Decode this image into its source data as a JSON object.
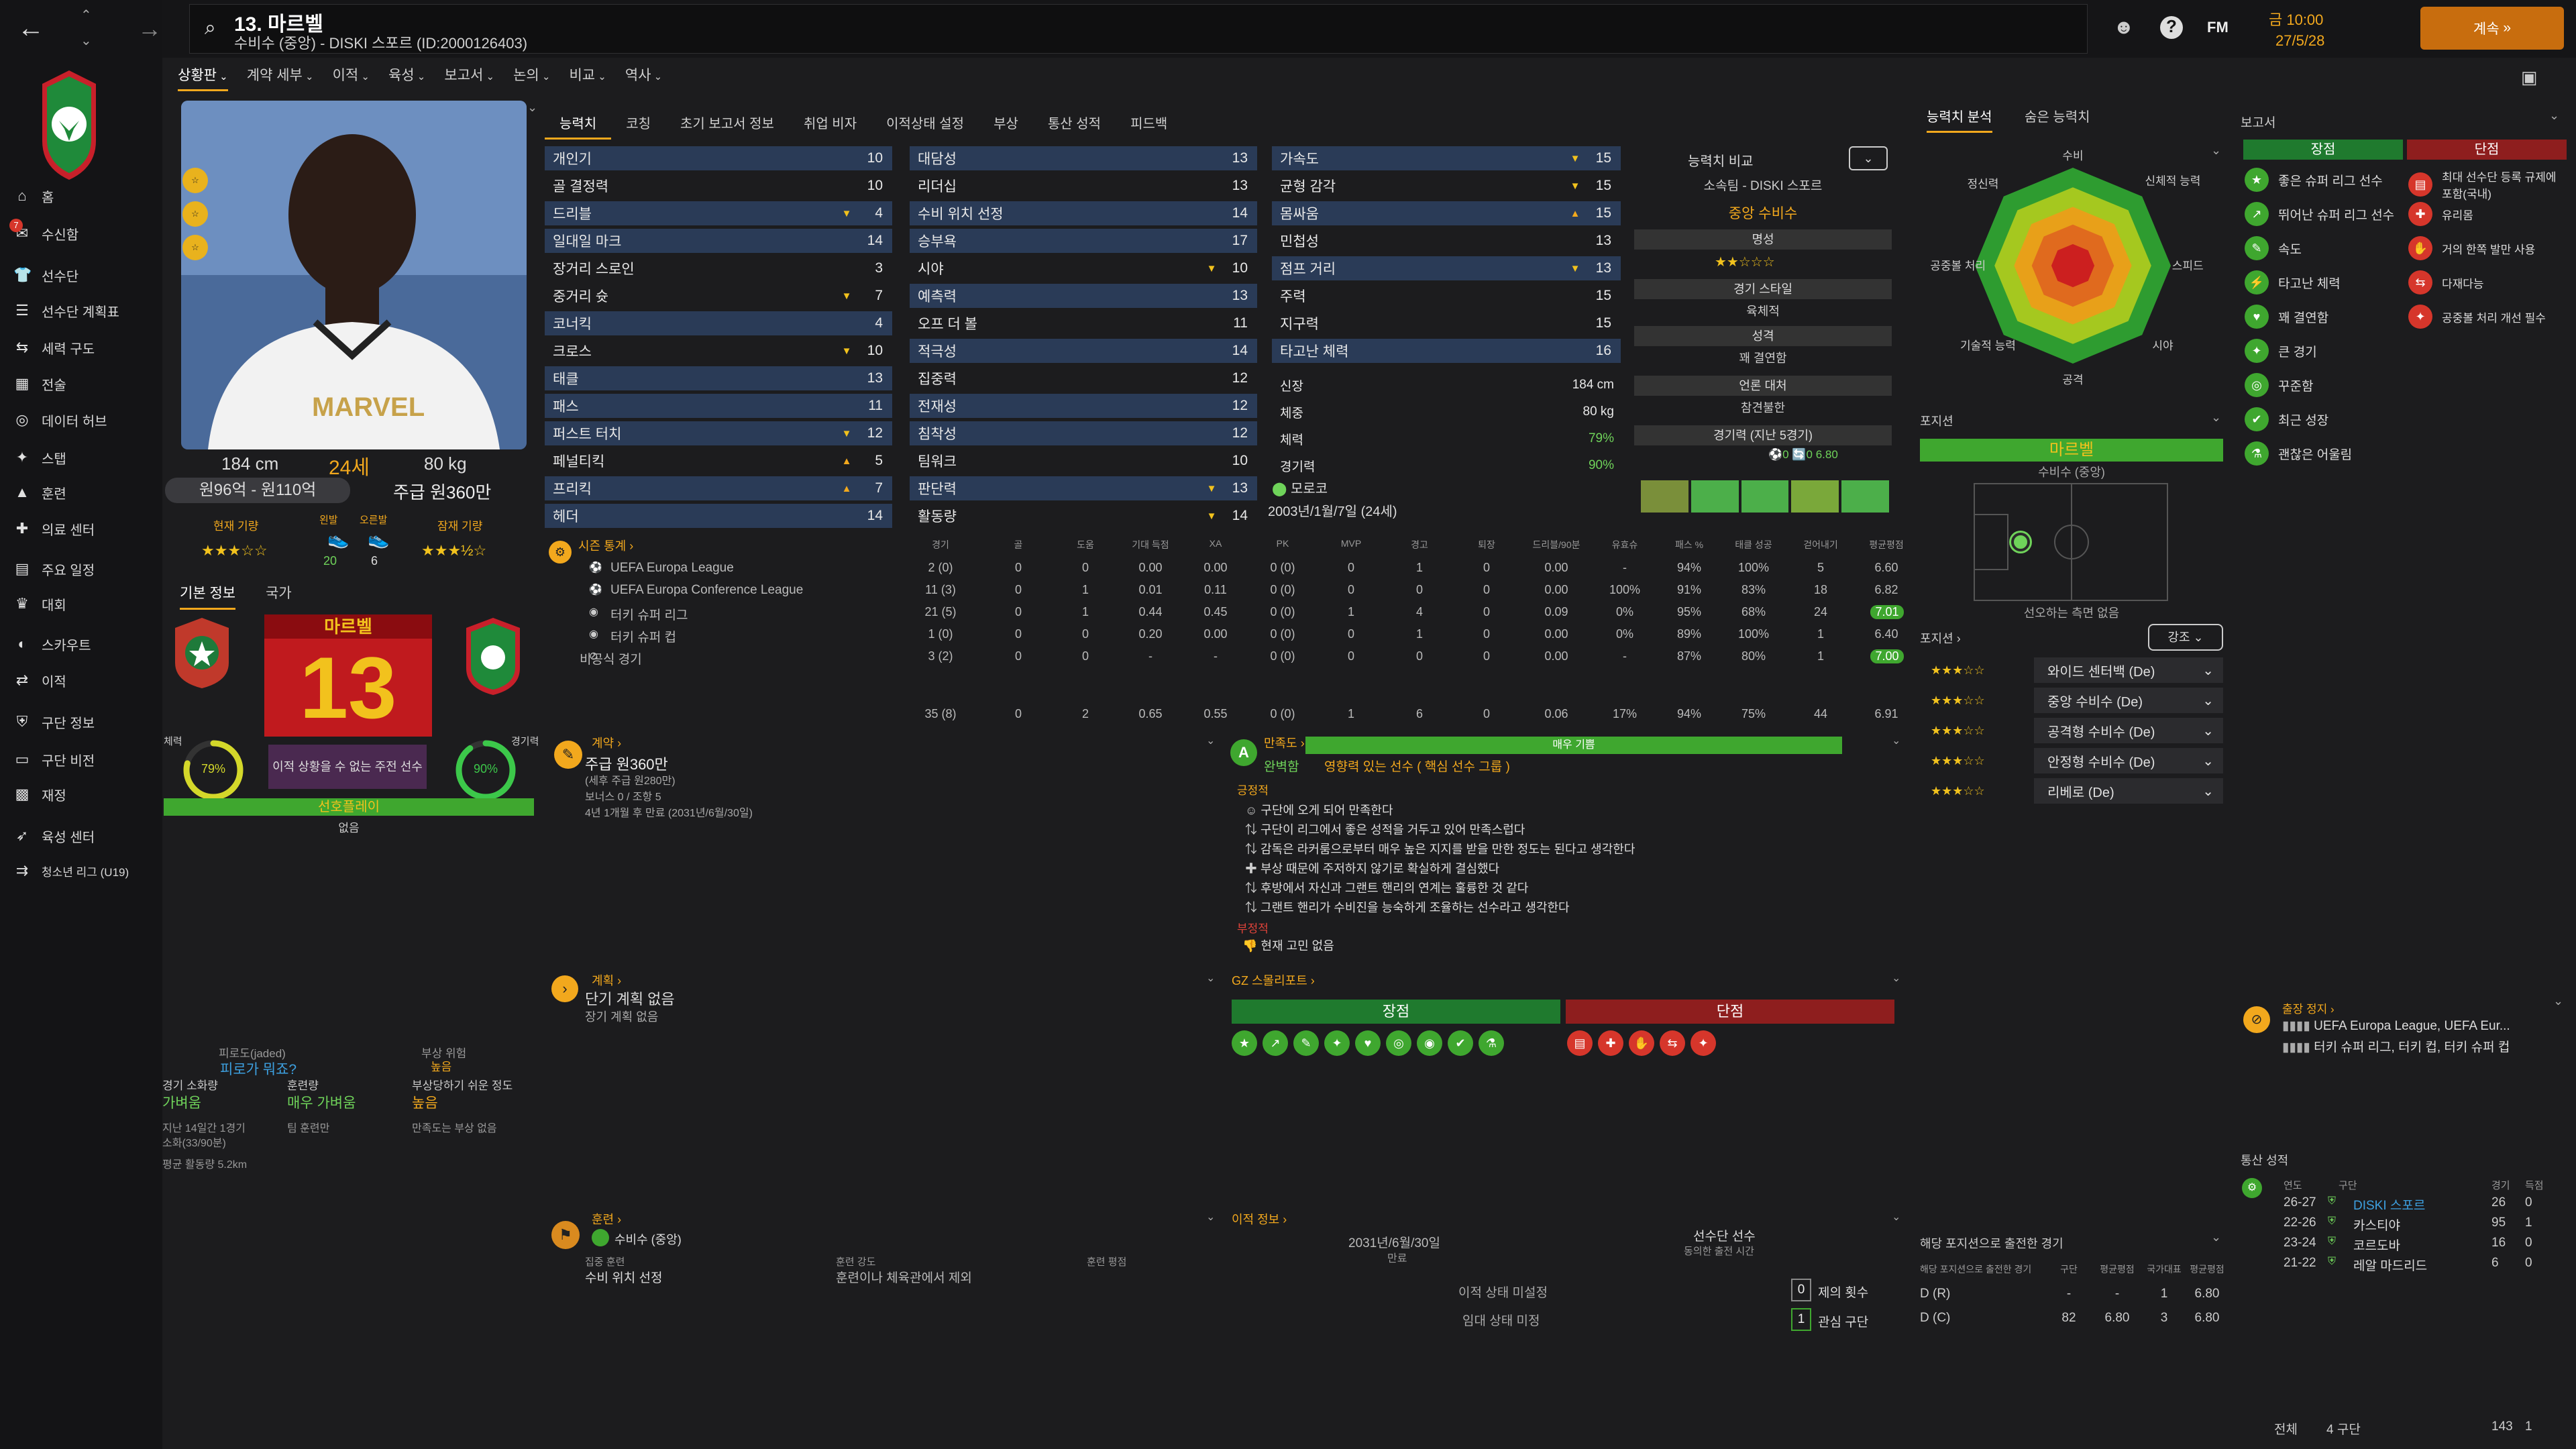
{
  "header": {
    "player_title": "13. 마르벨",
    "player_subtitle": "수비수 (중앙) - DISKI 스포르 (ID:2000126403)",
    "date_time": "금 10:00",
    "date": "27/5/28",
    "continue_label": "계속"
  },
  "sidebar": {
    "items": [
      {
        "label": "홈",
        "icon": "home-icon"
      },
      {
        "label": "수신함",
        "icon": "inbox-icon"
      },
      {
        "label": "선수단",
        "icon": "squad-icon"
      },
      {
        "label": "선수단 계획표",
        "icon": "plan-icon"
      },
      {
        "label": "세력 구도",
        "icon": "dynamics-icon"
      },
      {
        "label": "전술",
        "icon": "tactics-icon"
      },
      {
        "label": "데이터 허브",
        "icon": "data-icon"
      },
      {
        "label": "스탭",
        "icon": "staff-icon"
      },
      {
        "label": "훈련",
        "icon": "training-icon"
      },
      {
        "label": "의료 센터",
        "icon": "medical-icon"
      },
      {
        "label": "주요 일정",
        "icon": "calendar-icon"
      },
      {
        "label": "대회",
        "icon": "trophy-icon"
      },
      {
        "label": "스카우트",
        "icon": "scout-icon"
      },
      {
        "label": "이적",
        "icon": "transfer-icon"
      },
      {
        "label": "구단 정보",
        "icon": "club-icon"
      },
      {
        "label": "구단 비전",
        "icon": "vision-icon"
      },
      {
        "label": "재정",
        "icon": "finance-icon"
      },
      {
        "label": "육성 센터",
        "icon": "youth-icon"
      },
      {
        "label": "청소년 리그 (U19)",
        "icon": "u19-icon"
      }
    ]
  },
  "submenu": [
    "상황판",
    "계약 세부",
    "이적",
    "육성",
    "보고서",
    "논의",
    "비교",
    "역사"
  ],
  "profile": {
    "height": "184 cm",
    "age": "24세",
    "weight": "80 kg",
    "value": "원96억 - 원110억",
    "wage": "주급 원360만",
    "current_ability": "현재 기량",
    "potential_ability": "잠재 기량",
    "ca_stars": "★★★☆☆",
    "pa_stars": "★★★½☆",
    "hands": "왼발",
    "hands2": "오른발",
    "left_foot": "20",
    "right_foot": "6",
    "tab_basic": "기본 정보",
    "tab_nation": "국가",
    "name_banner": "마르벨",
    "number": "13",
    "condition_label": "체력",
    "condition": "79%",
    "match_label": "경기력",
    "match": "90%",
    "transfer_status": "이적 상황을 수 없는 주전 선수",
    "rotation": "선호플레이",
    "rotation_sub": "없음",
    "jaded_label": "피로도(jaded)",
    "jaded_val": "피로가 뭐죠?",
    "injury_risk_label": "부상 위험",
    "injury_risk": "높음",
    "load_label": "경기 소화량",
    "load_val": "가벼움",
    "training_label": "훈련량",
    "training_val": "매우 가벼움",
    "injury_prone_label": "부상당하기 쉬운 정도",
    "injury_prone_val": "높음",
    "last14": "지난 14일간 1경기",
    "mins": "소화(33/90분)",
    "fitness_note": "팀 훈련만",
    "inj_note": "만족도는 부상 없음",
    "avg_run": "평균 활동량 5.2km"
  },
  "attr_tabs": [
    "능력치",
    "코칭",
    "초기 보고서 정보",
    "취업 비자",
    "이적상태 설정",
    "부상",
    "통산 성적",
    "피드백"
  ],
  "attrs_col1": [
    {
      "n": "개인기",
      "v": "10",
      "a": ""
    },
    {
      "n": "골 결정력",
      "v": "10",
      "a": ""
    },
    {
      "n": "드리블",
      "v": "4",
      "a": "▼"
    },
    {
      "n": "일대일 마크",
      "v": "14",
      "a": ""
    },
    {
      "n": "장거리 스로인",
      "v": "3",
      "a": ""
    },
    {
      "n": "중거리 슛",
      "v": "7",
      "a": "▼"
    },
    {
      "n": "코너킥",
      "v": "4",
      "a": ""
    },
    {
      "n": "크로스",
      "v": "10",
      "a": "▼"
    },
    {
      "n": "태클",
      "v": "13",
      "a": ""
    },
    {
      "n": "패스",
      "v": "11",
      "a": ""
    },
    {
      "n": "퍼스트 터치",
      "v": "12",
      "a": "▼"
    },
    {
      "n": "페널티킥",
      "v": "5",
      "a": "▲"
    },
    {
      "n": "프리킥",
      "v": "7",
      "a": "▲"
    },
    {
      "n": "헤더",
      "v": "14",
      "a": ""
    }
  ],
  "attrs_col2": [
    {
      "n": "대담성",
      "v": "13",
      "a": ""
    },
    {
      "n": "리더십",
      "v": "13",
      "a": ""
    },
    {
      "n": "수비 위치 선정",
      "v": "14",
      "a": ""
    },
    {
      "n": "승부욕",
      "v": "17",
      "a": ""
    },
    {
      "n": "시야",
      "v": "10",
      "a": "▼"
    },
    {
      "n": "예측력",
      "v": "13",
      "a": ""
    },
    {
      "n": "오프 더 볼",
      "v": "11",
      "a": ""
    },
    {
      "n": "적극성",
      "v": "14",
      "a": ""
    },
    {
      "n": "집중력",
      "v": "12",
      "a": ""
    },
    {
      "n": "전재성",
      "v": "12",
      "a": ""
    },
    {
      "n": "침착성",
      "v": "12",
      "a": ""
    },
    {
      "n": "팀워크",
      "v": "10",
      "a": ""
    },
    {
      "n": "판단력",
      "v": "13",
      "a": "▼"
    },
    {
      "n": "활동량",
      "v": "14",
      "a": "▼"
    }
  ],
  "attrs_col3": [
    {
      "n": "가속도",
      "v": "15",
      "a": "▼"
    },
    {
      "n": "균형 감각",
      "v": "15",
      "a": "▼"
    },
    {
      "n": "몸싸움",
      "v": "15",
      "a": "▲"
    },
    {
      "n": "민첩성",
      "v": "13",
      "a": ""
    },
    {
      "n": "점프 거리",
      "v": "13",
      "a": "▼"
    },
    {
      "n": "주력",
      "v": "15",
      "a": ""
    },
    {
      "n": "지구력",
      "v": "15",
      "a": ""
    },
    {
      "n": "타고난 체력",
      "v": "16",
      "a": ""
    }
  ],
  "physical": [
    {
      "n": "신장",
      "v": "184 cm"
    },
    {
      "n": "체중",
      "v": "80 kg"
    },
    {
      "n": "체력",
      "v": "79%"
    },
    {
      "n": "경기력",
      "v": "90%"
    }
  ],
  "nationality": "모로코",
  "birth": "2003년/1월/7일 (24세)",
  "compare": {
    "title": "능력치 비교",
    "club": "소속팀 - DISKI 스포르",
    "role": "중앙 수비수",
    "rep_label": "명성",
    "rep_stars": "★★☆☆☆",
    "style_label": "경기 스타일",
    "style": "육체적",
    "pers_label": "성격",
    "pers": "꽤 결연함",
    "media_label": "언론 대처",
    "media": "참견불한",
    "form_label": "경기력 (지난 5경기)",
    "form_stats": "⚽0  🔄0  6.80"
  },
  "season": {
    "title": "시즌 통계",
    "headers": [
      "경기",
      "골",
      "도움",
      "기대 득점",
      "XA",
      "PK",
      "MVP",
      "경고",
      "퇴장",
      "드리블/90분",
      "유효슈",
      "패스 %",
      "태클 성공",
      "걷어내기",
      "평균평점"
    ],
    "rows": [
      {
        "comp": "UEFA Europa League",
        "vals": [
          "2 (0)",
          "0",
          "0",
          "0.00",
          "0.00",
          "0 (0)",
          "0",
          "1",
          "0",
          "0.00",
          "-",
          "94%",
          "100%",
          "5",
          "6.60"
        ]
      },
      {
        "comp": "UEFA Europa Conference League",
        "vals": [
          "11 (3)",
          "0",
          "1",
          "0.01",
          "0.11",
          "0 (0)",
          "0",
          "0",
          "0",
          "0.00",
          "100%",
          "91%",
          "83%",
          "18",
          "6.82"
        ]
      },
      {
        "comp": "터키 슈퍼 리그",
        "vals": [
          "21 (5)",
          "0",
          "1",
          "0.44",
          "0.45",
          "0 (0)",
          "1",
          "4",
          "0",
          "0.09",
          "0%",
          "95%",
          "68%",
          "24",
          "7.01"
        ]
      },
      {
        "comp": "터키 슈퍼 컵",
        "vals": [
          "1 (0)",
          "0",
          "0",
          "0.20",
          "0.00",
          "0 (0)",
          "0",
          "1",
          "0",
          "0.00",
          "0%",
          "89%",
          "100%",
          "1",
          "6.40"
        ]
      },
      {
        "comp": "비공식 경기",
        "vals": [
          "3 (2)",
          "0",
          "0",
          "-",
          "-",
          "0 (0)",
          "0",
          "0",
          "0",
          "0.00",
          "-",
          "87%",
          "80%",
          "1",
          "7.00"
        ]
      }
    ],
    "total": [
      "35 (8)",
      "0",
      "2",
      "0.65",
      "0.55",
      "0 (0)",
      "1",
      "6",
      "0",
      "0.06",
      "17%",
      "94%",
      "75%",
      "44",
      "6.91"
    ]
  },
  "contract": {
    "title": "계약",
    "wage": "주급 원360만",
    "wage_sub": "(세후 주급 원280만)",
    "bonus": "보너스 0 / 조항 5",
    "expires": "4년 1개월 후 만료 (2031년/6월/30일)"
  },
  "happiness": {
    "title": "만족도",
    "bar": "매우 기쁨",
    "status": "완벽함",
    "sub": "영향력 있는 선수 ( 핵심 선수 그룹 )",
    "pos_label": "긍정적",
    "pos": [
      "구단에 오게 되어 만족한다",
      "구단이 리그에서 좋은 성적을 거두고 있어 만족스럽다",
      "감독은 라커룸으로부터 매우 높은 지지를 받을 만한 정도는 된다고 생각한다",
      "부상 때문에 주저하지 않기로 확실하게 결심했다",
      "후방에서 자신과 그랜트 핸리의 연계는 훌륭한 것 같다",
      "그랜트 핸리가 수비진을 능숙하게 조율하는 선수라고 생각한다"
    ],
    "neg_label": "부정적",
    "neg": "현재 고민 없음"
  },
  "plan": {
    "title": "계획",
    "short": "단기 계획 없음",
    "long": "장기 계획 없음"
  },
  "gz": {
    "title": "GZ 스몰리포트",
    "pros": "장점",
    "cons": "단점"
  },
  "training": {
    "title": "훈련",
    "role": "수비수 (중앙)",
    "focus_label": "집중 훈련",
    "focus": "수비 위치 선정",
    "intensity_label": "훈련 강도",
    "intensity": "훈련이나 체육관에서 제외",
    "rest_label": "훈련 평점",
    "rest": ""
  },
  "transfer": {
    "title": "이적 정보",
    "date": "2031년/6월/30일",
    "date_label": "만료",
    "squad": "선수단 선수",
    "squad_sub": "동의한 출전 시간",
    "status": "이적 상태 미설정",
    "loan": "임대 상태 미정",
    "offers": "0",
    "offers_label": "제의 횟수",
    "interest": "1",
    "interest_label": "관심 구단"
  },
  "ability": {
    "tab1": "능력치 분석",
    "tab2": "숨은 능력치",
    "axes": [
      "수비",
      "신체적 능력",
      "스피드",
      "시야",
      "공격",
      "기술적 능력",
      "공중볼 처리",
      "정신력"
    ]
  },
  "positions": {
    "title": "포지션",
    "name": "마르벨",
    "role": "수비수 (중앙)",
    "note": "선오하는 측면 없음",
    "pos_title": "포지션",
    "emph": "강조",
    "list": [
      {
        "stars": "★★★☆☆",
        "role": "와이드 센터백 (De)"
      },
      {
        "stars": "★★★☆☆",
        "role": "중앙 수비수 (De)"
      },
      {
        "stars": "★★★☆☆",
        "role": "공격형 수비수 (De)"
      },
      {
        "stars": "★★★☆☆",
        "role": "안정형 수비수 (De)"
      },
      {
        "stars": "★★★☆☆",
        "role": "리베로 (De)"
      }
    ]
  },
  "pos_apps": {
    "title": "해당 포지션으로 출전한 경기",
    "hdr": [
      "구단",
      "평균평점",
      "국가대표",
      "평균평점"
    ],
    "rows": [
      {
        "p": "D (R)",
        "a": "-",
        "b": "-",
        "c": "1",
        "d": "6.80"
      },
      {
        "p": "D (C)",
        "a": "82",
        "b": "6.80",
        "c": "3",
        "d": "6.80"
      }
    ]
  },
  "report": {
    "title": "보고서",
    "pros_label": "장점",
    "cons_label": "단점",
    "pros": [
      "좋은 슈퍼 리그 선수",
      "뛰어난 슈퍼 리그 선수",
      "속도",
      "타고난 체력",
      "꽤 결연함",
      "큰 경기",
      "꾸준함",
      "최근 성장",
      "괜찮은 어울림"
    ],
    "cons": [
      "최대 선수단 등록 규제에 포함(국내)",
      "유리몸",
      "거의 한쪽 발만 사용",
      "다재다능",
      "공중볼 처리 개선 필수"
    ]
  },
  "suspension": {
    "title": "출장 정지",
    "l1": "UEFA Europa League, UEFA Eur...",
    "l2": "터키 슈퍼 리그, 터키 컵, 터키 슈퍼 컵"
  },
  "career": {
    "title": "통산 성적",
    "hdr": [
      "연도",
      "구단",
      "경기",
      "득점"
    ],
    "rows": [
      {
        "y": "26-27",
        "c": "DISKI 스포르",
        "g": "26",
        "s": "0"
      },
      {
        "y": "22-26",
        "c": "카스티야",
        "g": "95",
        "s": "1"
      },
      {
        "y": "23-24",
        "c": "코르도바",
        "g": "16",
        "s": "0"
      },
      {
        "y": "21-22",
        "c": "레알 마드리드",
        "g": "6",
        "s": "0"
      }
    ],
    "total_label": "전체",
    "total_clubs": "4 구단",
    "total_g": "143",
    "total_s": "1"
  },
  "colors": {
    "accent": "#f2a81d",
    "green": "#3fa72f",
    "red": "#d6362b",
    "highlight": "#2a3b57"
  }
}
